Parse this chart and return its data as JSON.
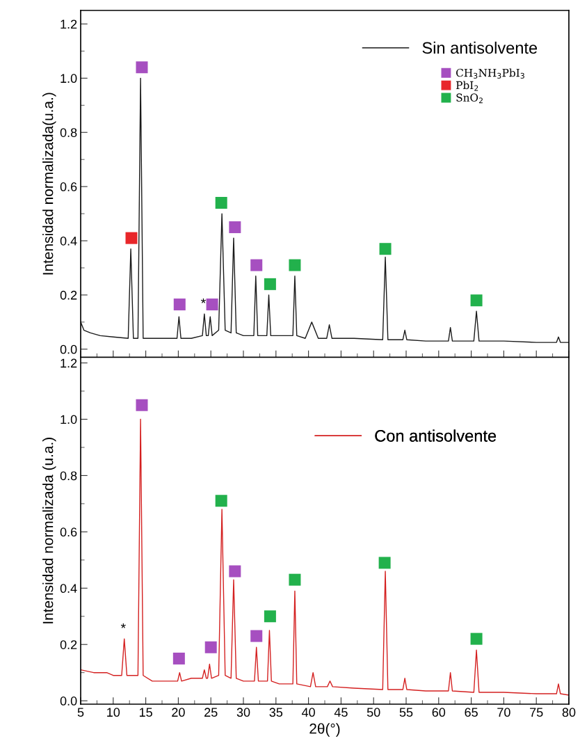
{
  "chart_data": [
    {
      "type": "line",
      "ylabel": "Intensidad normalizada(u.a.)",
      "xlim": [
        5,
        80
      ],
      "xticks": [
        5,
        10,
        15,
        20,
        25,
        30,
        35,
        40,
        45,
        50,
        55,
        60,
        65,
        70,
        75,
        80
      ],
      "ylim": [
        -0.03,
        1.25
      ],
      "yticks": [
        {
          "value": 0,
          "label": "0.0"
        },
        {
          "value": 0.2,
          "label": "0.2"
        },
        {
          "value": 0.4,
          "label": "0.4"
        },
        {
          "value": 0.6,
          "label": "0.6"
        },
        {
          "value": 0.8,
          "label": "0.8"
        },
        {
          "value": 1.0,
          "label": "1.0"
        },
        {
          "value": 1.2,
          "label": "1.2"
        }
      ],
      "tick_labels": "y",
      "legend": "top right",
      "grid": false,
      "annotations": [
        {
          "text": "*",
          "x": 24.0,
          "y": 0.13
        }
      ],
      "series": [
        {
          "name": "Sin antisolvente",
          "color": "#1a1a1a",
          "x": [
            5,
            5.5,
            6.5,
            8,
            10,
            12.3,
            12.7,
            13.1,
            13.8,
            14.2,
            14.6,
            16,
            19.8,
            20.1,
            20.4,
            22,
            23.7,
            24.0,
            24.3,
            24.6,
            24.9,
            25.2,
            26.2,
            26.7,
            27.2,
            28.1,
            28.5,
            28.9,
            30,
            31.6,
            31.9,
            32.2,
            33.6,
            33.9,
            34.2,
            35.2,
            37.6,
            37.9,
            38.2,
            39.5,
            40.5,
            41.5,
            42.8,
            43.2,
            43.6,
            47,
            51.4,
            51.8,
            52.2,
            54.5,
            54.8,
            55.1,
            58,
            61.5,
            61.8,
            62.1,
            65.4,
            65.8,
            66.2,
            70,
            75,
            78.1,
            78.4,
            78.7,
            80
          ],
          "values": [
            0.1,
            0.07,
            0.06,
            0.05,
            0.045,
            0.04,
            0.37,
            0.04,
            0.04,
            1.0,
            0.04,
            0.04,
            0.04,
            0.12,
            0.04,
            0.04,
            0.05,
            0.13,
            0.05,
            0.05,
            0.12,
            0.05,
            0.07,
            0.5,
            0.07,
            0.06,
            0.41,
            0.06,
            0.05,
            0.05,
            0.27,
            0.05,
            0.05,
            0.2,
            0.05,
            0.05,
            0.05,
            0.27,
            0.05,
            0.04,
            0.1,
            0.04,
            0.04,
            0.09,
            0.04,
            0.04,
            0.035,
            0.34,
            0.035,
            0.035,
            0.07,
            0.035,
            0.03,
            0.03,
            0.08,
            0.03,
            0.03,
            0.14,
            0.03,
            0.03,
            0.025,
            0.025,
            0.045,
            0.025,
            0.025
          ]
        },
        {
          "name": "CH$_{3}$NH$_{3}$PbI$_{3}$",
          "type": "scatter",
          "marker": "square",
          "color": "#a64fc0",
          "x": [
            14.4,
            20.2,
            25.2,
            28.7,
            32.0
          ],
          "values": [
            1.04,
            0.165,
            0.165,
            0.45,
            0.31
          ]
        },
        {
          "name": "PbI$_{2}$",
          "type": "scatter",
          "marker": "square",
          "color": "#e8262a",
          "x": [
            12.8
          ],
          "values": [
            0.41
          ]
        },
        {
          "name": "SnO$_{2}$",
          "type": "scatter",
          "marker": "square",
          "color": "#22b14c",
          "x": [
            26.6,
            34.1,
            37.9,
            51.8,
            65.8
          ],
          "values": [
            0.54,
            0.24,
            0.31,
            0.37,
            0.18
          ]
        }
      ]
    },
    {
      "type": "line",
      "ylabel": "Intensidad normalizada (u.a.)",
      "xlabel": "2θ(°)",
      "xlim": [
        5,
        80
      ],
      "xticks": [
        5,
        10,
        15,
        20,
        25,
        30,
        35,
        40,
        45,
        50,
        55,
        60,
        65,
        70,
        75,
        80
      ],
      "ylim": [
        -0.012,
        1.22
      ],
      "yticks": [
        {
          "value": 0,
          "label": "0.0"
        },
        {
          "value": 0.2,
          "label": "0.2"
        },
        {
          "value": 0.4,
          "label": "0.4"
        },
        {
          "value": 0.6,
          "label": "0.6"
        },
        {
          "value": 0.8,
          "label": "0.8"
        },
        {
          "value": 1.0,
          "label": "1.0"
        },
        {
          "value": 1.2,
          "label": "1.2"
        }
      ],
      "legend": "top right",
      "grid": false,
      "annotations": [
        {
          "text": "*",
          "x": 11.7,
          "y": 0.22
        }
      ],
      "series": [
        {
          "name": "Con antisolvente",
          "color": "#d42020",
          "x": [
            5,
            7,
            9,
            10,
            11.3,
            11.7,
            12.1,
            13.8,
            14.2,
            14.6,
            16,
            18,
            19.9,
            20.2,
            20.5,
            22,
            23.7,
            24.0,
            24.3,
            24.5,
            24.8,
            25.1,
            26.2,
            26.7,
            27.2,
            28.1,
            28.5,
            28.9,
            30,
            31.7,
            32.0,
            32.3,
            33.7,
            34.0,
            34.3,
            35.5,
            37.6,
            37.9,
            38.2,
            40.3,
            40.7,
            41.1,
            42.9,
            43.3,
            43.7,
            47,
            51.4,
            51.8,
            52.2,
            54.5,
            54.8,
            55.1,
            58,
            61.5,
            61.8,
            62.1,
            65.4,
            65.8,
            66.2,
            70,
            75,
            78.1,
            78.4,
            78.7,
            80
          ],
          "values": [
            0.11,
            0.1,
            0.1,
            0.09,
            0.09,
            0.22,
            0.09,
            0.09,
            1.0,
            0.09,
            0.07,
            0.07,
            0.07,
            0.1,
            0.07,
            0.08,
            0.08,
            0.11,
            0.08,
            0.08,
            0.13,
            0.08,
            0.09,
            0.68,
            0.09,
            0.08,
            0.43,
            0.08,
            0.07,
            0.07,
            0.19,
            0.07,
            0.07,
            0.25,
            0.07,
            0.06,
            0.06,
            0.39,
            0.06,
            0.05,
            0.1,
            0.05,
            0.05,
            0.07,
            0.05,
            0.045,
            0.04,
            0.46,
            0.04,
            0.04,
            0.08,
            0.04,
            0.035,
            0.035,
            0.1,
            0.035,
            0.03,
            0.18,
            0.03,
            0.03,
            0.025,
            0.025,
            0.06,
            0.025,
            0.02
          ]
        },
        {
          "type": "scatter",
          "marker": "square",
          "color": "#a64fc0",
          "x": [
            14.4,
            20.1,
            25.0,
            28.7,
            32.0
          ],
          "values": [
            1.05,
            0.15,
            0.19,
            0.46,
            0.23
          ]
        },
        {
          "type": "scatter",
          "marker": "square",
          "color": "#22b14c",
          "x": [
            26.6,
            34.1,
            37.9,
            51.7,
            65.8
          ],
          "values": [
            0.71,
            0.3,
            0.43,
            0.49,
            0.22
          ]
        }
      ]
    }
  ]
}
